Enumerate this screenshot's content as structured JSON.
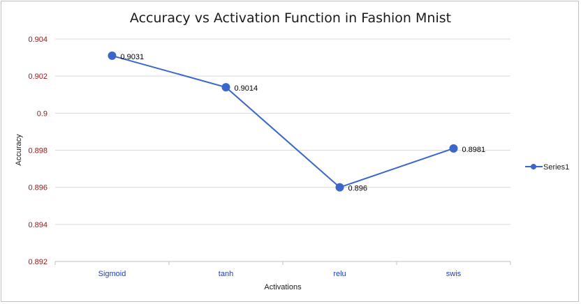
{
  "chart_data": {
    "type": "line",
    "title": "Accuracy vs Activation Function in Fashion Mnist",
    "xlabel": "Activations",
    "ylabel": "Accuracy",
    "categories": [
      "Sigmoid",
      "tanh",
      "relu",
      "swis"
    ],
    "series": [
      {
        "name": "Series1",
        "values": [
          0.9031,
          0.9014,
          0.896,
          0.8981
        ],
        "data_labels": [
          "0.9031",
          "0.9014",
          "0.896",
          "0.8981"
        ]
      }
    ],
    "ylim": [
      0.892,
      0.904
    ],
    "yticks": [
      "0.892",
      "0.894",
      "0.896",
      "0.898",
      "0.9",
      "0.902",
      "0.904"
    ],
    "grid": true,
    "legend_position": "right",
    "colors": {
      "series": "#3a67c9",
      "ytick_text": "#8b1a1a",
      "xtick_text": "#1a3fc0",
      "grid": "#d9d9d9"
    }
  }
}
